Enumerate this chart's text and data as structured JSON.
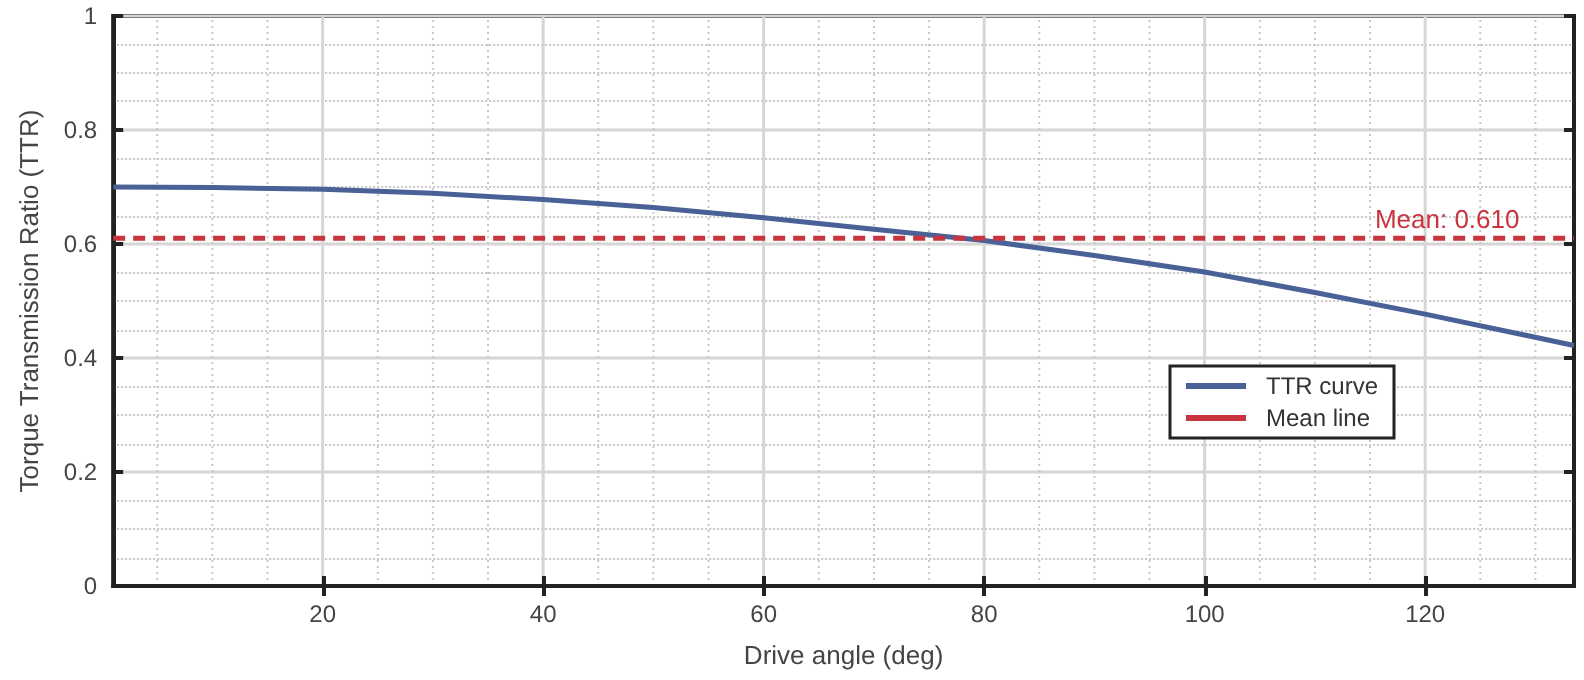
{
  "chart_data": {
    "type": "line",
    "xlabel": "Drive angle (deg)",
    "ylabel": "Torque Transmission Ratio (TTR)",
    "xlim": [
      1,
      133.5
    ],
    "xticks": [
      20,
      40,
      60,
      80,
      100,
      120
    ],
    "ylim": [
      0,
      1
    ],
    "yticks": [
      0,
      0.2,
      0.4,
      0.6,
      0.8,
      1
    ],
    "grid": true,
    "legend": "right",
    "marker": "none",
    "series": [
      {
        "name": "TTR curve",
        "color": "#4a6197",
        "line_style": "solid",
        "x": [
          1,
          10,
          20,
          30,
          40,
          50,
          60,
          70,
          80,
          90,
          100,
          110,
          120,
          133.5
        ],
        "values": [
          0.7,
          0.699,
          0.696,
          0.689,
          0.678,
          0.664,
          0.646,
          0.626,
          0.606,
          0.58,
          0.551,
          0.515,
          0.477,
          0.422
        ]
      },
      {
        "name": "Mean line",
        "color": "#c8353f",
        "line_style": "dashed",
        "x": [
          1,
          133.5
        ],
        "values": [
          0.61,
          0.61
        ]
      }
    ],
    "annotations": [
      {
        "text": "Mean: 0.610",
        "x": 122,
        "y": 0.61
      }
    ]
  }
}
